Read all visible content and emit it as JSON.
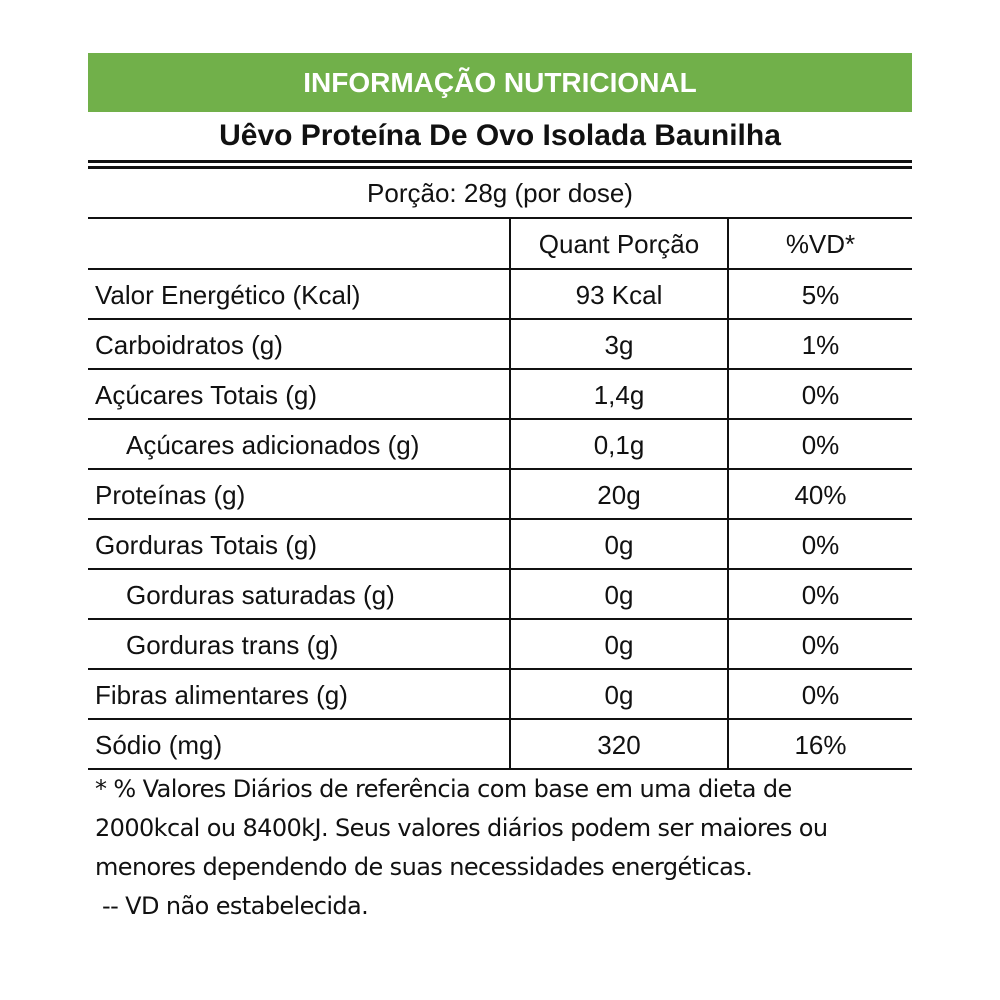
{
  "header": {
    "title": "INFORMAÇÃO NUTRICIONAL",
    "product": "Uêvo Proteína De Ovo Isolada Baunilha",
    "portion": "Porção: 28g (por dose)"
  },
  "table": {
    "columns": [
      "Quant Porção",
      "%VD*"
    ],
    "rows": [
      {
        "name": "Valor Energético (Kcal)",
        "amount": "93 Kcal",
        "vd": "5%",
        "indent": false
      },
      {
        "name": "Carboidratos (g)",
        "amount": "3g",
        "vd": "1%",
        "indent": false
      },
      {
        "name": "Açúcares Totais (g)",
        "amount": "1,4g",
        "vd": "0%",
        "indent": false
      },
      {
        "name": "Açúcares adicionados (g)",
        "amount": "0,1g",
        "vd": "0%",
        "indent": true
      },
      {
        "name": "Proteínas (g)",
        "amount": "20g",
        "vd": "40%",
        "indent": false
      },
      {
        "name": "Gorduras Totais (g)",
        "amount": "0g",
        "vd": "0%",
        "indent": false
      },
      {
        "name": "Gorduras saturadas (g)",
        "amount": "0g",
        "vd": "0%",
        "indent": true
      },
      {
        "name": "Gorduras trans (g)",
        "amount": "0g",
        "vd": "0%",
        "indent": true
      },
      {
        "name": "Fibras alimentares (g)",
        "amount": "0g",
        "vd": "0%",
        "indent": false
      },
      {
        "name": "Sódio (mg)",
        "amount": "320",
        "vd": "16%",
        "indent": false
      }
    ]
  },
  "footer": {
    "lines": [
      "* % Valores Diários de referência com base em uma dieta de",
      "2000kcal ou 8400kJ. Seus valores diários podem ser maiores ou",
      "menores dependendo de suas necessidades energéticas.",
      " -- VD não estabelecida."
    ]
  }
}
